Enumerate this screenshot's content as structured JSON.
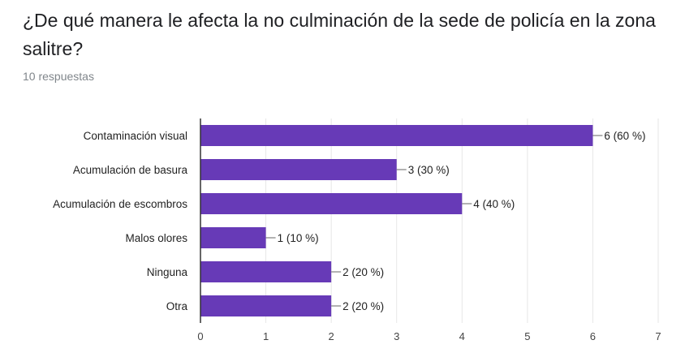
{
  "question": {
    "title": "¿De qué manera le afecta la no culminación de la sede de policía en la zona salitre?",
    "response_count": "10 respuestas"
  },
  "chart_data": {
    "type": "bar",
    "orientation": "horizontal",
    "categories": [
      "Contaminación visual",
      "Acumulación de basura",
      "Acumulación de escombros",
      "Malos olores",
      "Ninguna",
      "Otra"
    ],
    "values": [
      6,
      3,
      4,
      1,
      2,
      2
    ],
    "value_labels": [
      "6 (60 %)",
      "3 (30 %)",
      "4 (40 %)",
      "1 (10 %)",
      "2 (20 %)",
      "2 (20 %)"
    ],
    "xticks": [
      "0",
      "1",
      "2",
      "3",
      "4",
      "5",
      "6",
      "7"
    ],
    "xlim": [
      0,
      7
    ],
    "grid": true,
    "bar_color": "#673ab7"
  }
}
